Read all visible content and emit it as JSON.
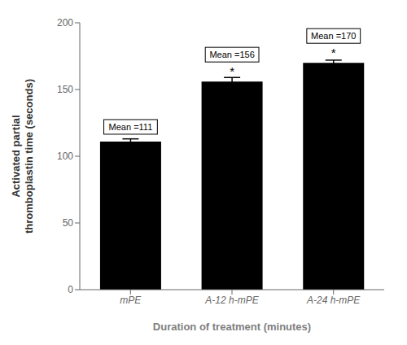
{
  "chart_data": {
    "type": "bar",
    "categories": [
      "mPE",
      "A-12 h-mPE",
      "A-24 h-mPE"
    ],
    "values": [
      111,
      156,
      170
    ],
    "errors": [
      2,
      3,
      2
    ],
    "data_labels": true,
    "value_labels": [
      "Mean =111",
      "Mean =156",
      "Mean =170"
    ],
    "annotations": [
      {
        "text": "*",
        "category": "A-12 h-mPE"
      },
      {
        "text": "*",
        "category": "A-24 h-mPE"
      }
    ],
    "ylim": [
      0,
      200
    ],
    "yticks": [
      0,
      50,
      100,
      150,
      200
    ],
    "ylabel": "Activated partial\nthromboplastin time (seconds)",
    "xlabel": "Duration of treatment (minutes)",
    "grid": false
  }
}
